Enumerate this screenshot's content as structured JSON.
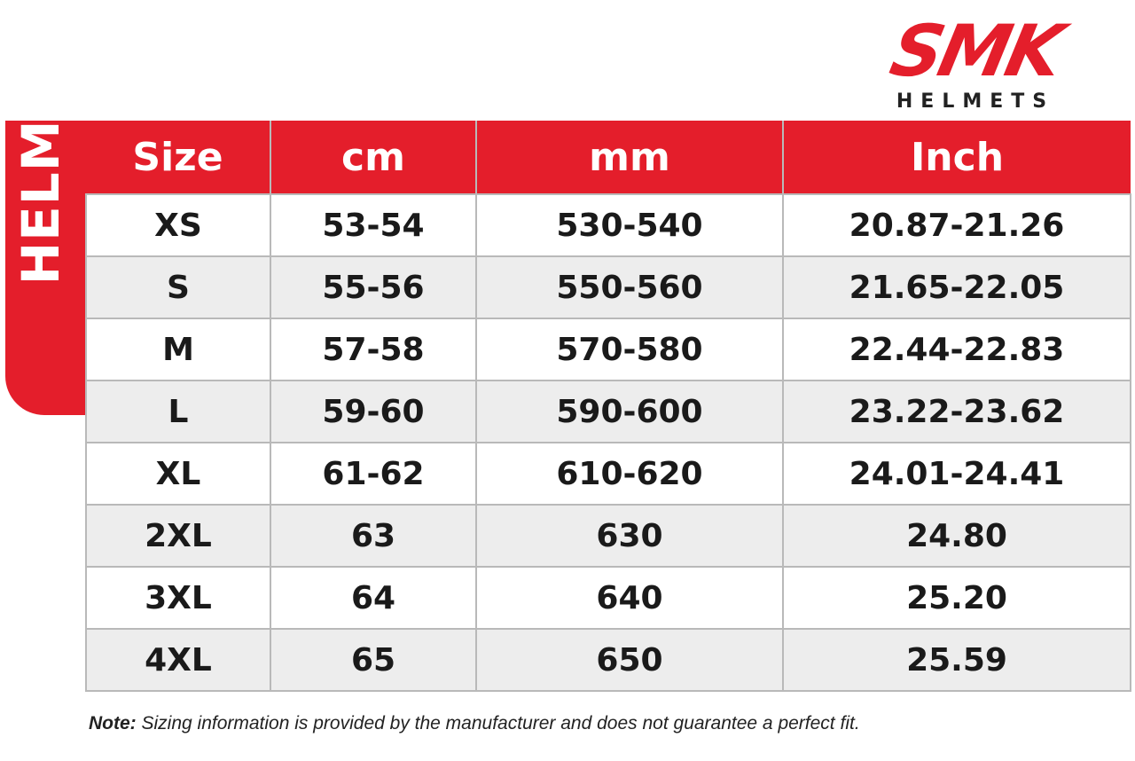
{
  "brand": {
    "name": "SMK",
    "subtitle": "HELMETS",
    "color": "#e41e2b"
  },
  "side_label": "HELMETS",
  "table": {
    "headers": [
      "Size",
      "cm",
      "mm",
      "Inch"
    ],
    "rows": [
      {
        "size": "XS",
        "cm": "53-54",
        "mm": "530-540",
        "inch": "20.87-21.26"
      },
      {
        "size": "S",
        "cm": "55-56",
        "mm": "550-560",
        "inch": "21.65-22.05"
      },
      {
        "size": "M",
        "cm": "57-58",
        "mm": "570-580",
        "inch": "22.44-22.83"
      },
      {
        "size": "L",
        "cm": "59-60",
        "mm": "590-600",
        "inch": "23.22-23.62"
      },
      {
        "size": "XL",
        "cm": "61-62",
        "mm": "610-620",
        "inch": "24.01-24.41"
      },
      {
        "size": "2XL",
        "cm": "63",
        "mm": "630",
        "inch": "24.80"
      },
      {
        "size": "3XL",
        "cm": "64",
        "mm": "640",
        "inch": "25.20"
      },
      {
        "size": "4XL",
        "cm": "65",
        "mm": "650",
        "inch": "25.59"
      }
    ]
  },
  "note": {
    "label": "Note:",
    "text": " Sizing information is provided by the manufacturer and does not guarantee a perfect fit."
  }
}
